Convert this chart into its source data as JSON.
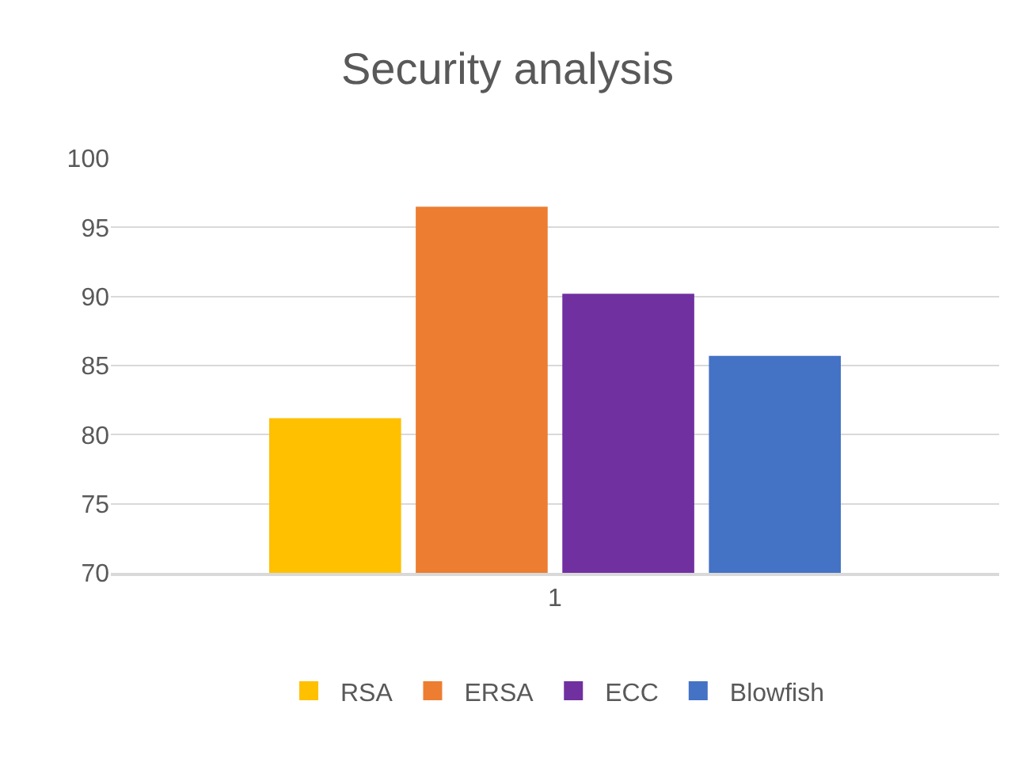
{
  "chart_data": {
    "type": "bar",
    "title": "Security analysis",
    "categories": [
      "1"
    ],
    "series": [
      {
        "name": "RSA",
        "color": "#ffc000",
        "values": [
          81.2
        ]
      },
      {
        "name": "ERSA",
        "color": "#ed7d31",
        "values": [
          96.5
        ]
      },
      {
        "name": "ECC",
        "color": "#7030a0",
        "values": [
          90.2
        ]
      },
      {
        "name": "Blowfish",
        "color": "#4472c4",
        "values": [
          85.7
        ]
      }
    ],
    "ylim": [
      70,
      100
    ],
    "yticks": [
      70,
      75,
      80,
      85,
      90,
      95,
      100
    ],
    "grid": "y",
    "legend": "bottom"
  }
}
